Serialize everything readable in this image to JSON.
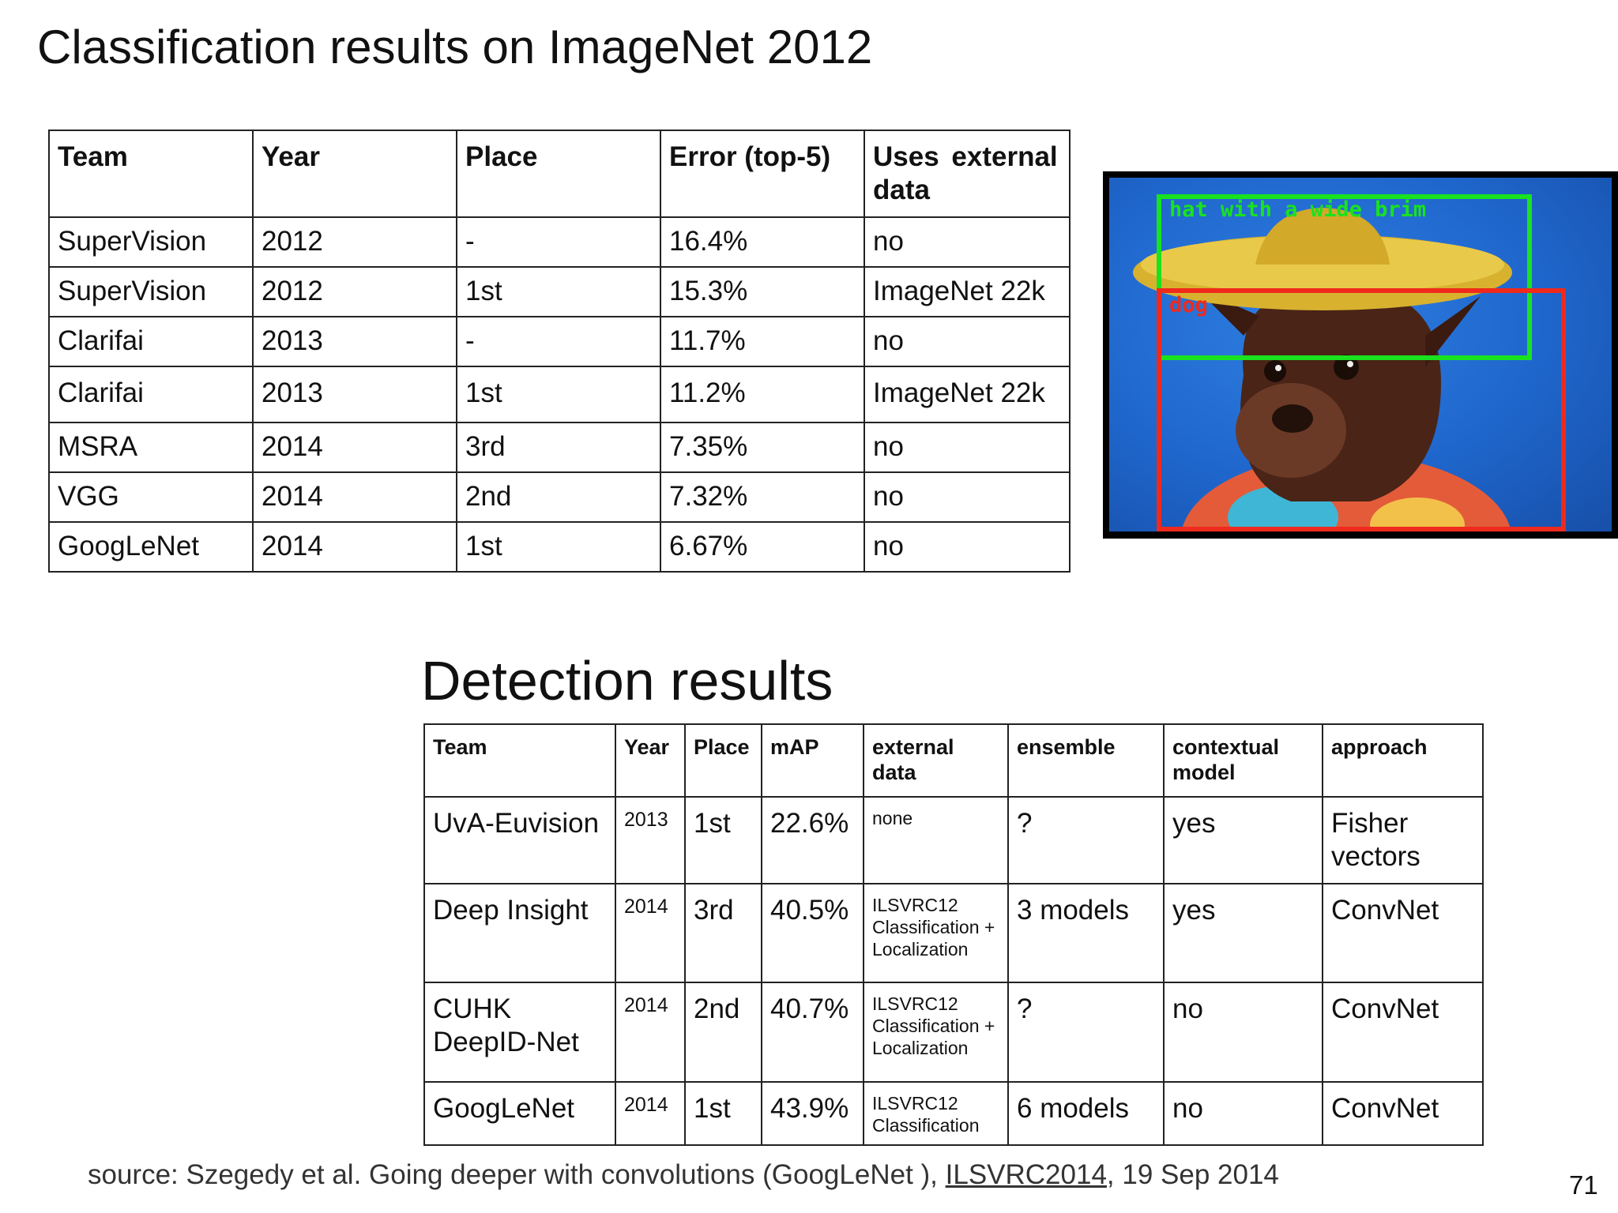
{
  "title": "Classification results on ImageNet 2012",
  "classification": {
    "headers": [
      "Team",
      "Year",
      "Place",
      "Error (top-5)",
      "Uses external data"
    ],
    "rows": [
      [
        "SuperVision",
        "2012",
        "-",
        "16.4%",
        "no"
      ],
      [
        "SuperVision",
        "2012",
        "1st",
        "15.3%",
        "ImageNet 22k"
      ],
      [
        "Clarifai",
        "2013",
        "-",
        "11.7%",
        "no"
      ],
      [
        "Clarifai",
        "2013",
        "1st",
        "11.2%",
        "ImageNet 22k"
      ],
      [
        "MSRA",
        "2014",
        "3rd",
        "7.35%",
        "no"
      ],
      [
        "VGG",
        "2014",
        "2nd",
        "7.32%",
        "no"
      ],
      [
        "GoogLeNet",
        "2014",
        "1st",
        "6.67%",
        "no"
      ]
    ]
  },
  "image": {
    "label_green": "hat with a wide brim",
    "label_red": "dog",
    "colors": {
      "green": "#19e21f",
      "red": "#ef2a1c",
      "background": "#1f66cc"
    }
  },
  "detection_title": "Detection results",
  "detection": {
    "headers": [
      "Team",
      "Year",
      "Place",
      "mAP",
      "external data",
      "ensemble",
      "contextual model",
      "approach"
    ],
    "rows": [
      [
        "UvA-Euvision",
        "2013",
        "1st",
        "22.6%",
        "none",
        "?",
        "yes",
        "Fisher vectors"
      ],
      [
        "Deep Insight",
        "2014",
        "3rd",
        "40.5%",
        "ILSVRC12 Classification + Localization",
        "3 models",
        "yes",
        "ConvNet"
      ],
      [
        "CUHK DeepID-Net",
        "2014",
        "2nd",
        "40.7%",
        "ILSVRC12 Classification + Localization",
        "?",
        "no",
        "ConvNet"
      ],
      [
        "GoogLeNet",
        "2014",
        "1st",
        "43.9%",
        "ILSVRC12 Classification",
        "6 models",
        "no",
        "ConvNet"
      ]
    ]
  },
  "source": {
    "prefix": "source: Szegedy et al. Going deeper with convolutions (GoogLeNet ), ",
    "link": "ILSVRC2014",
    "suffix": ", 19 Sep 2014"
  },
  "page_number": "71"
}
